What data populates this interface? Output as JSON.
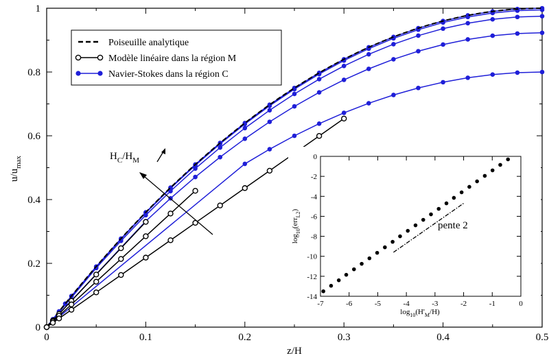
{
  "chart_data": [
    {
      "type": "line",
      "xlabel": "z/H",
      "ylabel": "u/u",
      "ylabel_sub": "max",
      "xlim": [
        0,
        0.5
      ],
      "ylim": [
        0,
        1
      ],
      "xticks": [
        "0",
        "0.1",
        "0.2",
        "0.3",
        "0.4",
        "0.5"
      ],
      "yticks": [
        "0",
        "0.2",
        "0.4",
        "0.6",
        "0.8",
        "1"
      ],
      "legend_position": "top-left",
      "legend": [
        {
          "label": "Poiseuille analytique",
          "style": "dashed",
          "color": "#000000"
        },
        {
          "label": "Modèle linéaire dans la région M",
          "style": "open-circle",
          "color": "#000000"
        },
        {
          "label": "Navier-Stokes dans la région C",
          "style": "filled-circle",
          "color": "#1f1fd8"
        }
      ],
      "annotation": {
        "text": "H",
        "sub1": "C",
        "mid": "/H",
        "sub2": "M"
      },
      "analytic": {
        "formula": "4(z/H)(1-z/H)"
      },
      "ns_x": [
        0,
        0.00625,
        0.0125,
        0.01875,
        0.025,
        0.05,
        0.075,
        0.1,
        0.125,
        0.15,
        0.175,
        0.2,
        0.225,
        0.25,
        0.275,
        0.3,
        0.325,
        0.35,
        0.375,
        0.4,
        0.425,
        0.45,
        0.475,
        0.5
      ],
      "series": [
        {
          "kind": "ns",
          "top": 1.0
        },
        {
          "kind": "ns",
          "top": 0.995
        },
        {
          "kind": "ns",
          "top": 0.975,
          "x_start": 0.05
        },
        {
          "kind": "ns",
          "top": 0.923,
          "x_start": 0.1
        },
        {
          "kind": "ns",
          "top": 0.8,
          "x_start": 0.2
        },
        {
          "kind": "linear",
          "slope": 3.3,
          "x": [
            0,
            0.00625,
            0.0125,
            0.025,
            0.05,
            0.075,
            0.1
          ]
        },
        {
          "kind": "linear",
          "slope": 2.85,
          "x": [
            0,
            0.00625,
            0.0125,
            0.025,
            0.05,
            0.075,
            0.1,
            0.125,
            0.15
          ]
        },
        {
          "kind": "linear",
          "slope": 2.18,
          "x": [
            0,
            0.00625,
            0.0125,
            0.025,
            0.05,
            0.075,
            0.1,
            0.125,
            0.15,
            0.175,
            0.2,
            0.225,
            0.25,
            0.275,
            0.3
          ]
        }
      ]
    },
    {
      "type": "scatter",
      "xlabel": "log",
      "xlabel_sub": "10",
      "xlabel_rest": "(H'",
      "xlabel_sub2": "M",
      "xlabel_end": "/H)",
      "ylabel": "log",
      "ylabel_sub": "10",
      "ylabel_mid": "(err",
      "ylabel_sub2": "L2",
      "ylabel_end": ")",
      "xlim": [
        -7,
        0
      ],
      "ylim": [
        -14,
        0
      ],
      "xticks": [
        "-7",
        "-6",
        "-5",
        "-4",
        "-3",
        "-2",
        "-1",
        "0"
      ],
      "yticks": [
        "0",
        "-2",
        "-4",
        "-6",
        "-8",
        "-10",
        "-12",
        "-14"
      ],
      "points": [
        [
          -6.9,
          -13.5
        ],
        [
          -6.63,
          -12.95
        ],
        [
          -6.36,
          -12.4
        ],
        [
          -6.1,
          -11.85
        ],
        [
          -5.83,
          -11.3
        ],
        [
          -5.56,
          -10.75
        ],
        [
          -5.29,
          -10.2
        ],
        [
          -5.02,
          -9.65
        ],
        [
          -4.75,
          -9.1
        ],
        [
          -4.48,
          -8.55
        ],
        [
          -4.22,
          -8.0
        ],
        [
          -3.95,
          -7.45
        ],
        [
          -3.68,
          -6.9
        ],
        [
          -3.41,
          -6.35
        ],
        [
          -3.14,
          -5.8
        ],
        [
          -2.87,
          -5.25
        ],
        [
          -2.6,
          -4.7
        ],
        [
          -2.34,
          -4.15
        ],
        [
          -2.07,
          -3.6
        ],
        [
          -1.8,
          -3.05
        ],
        [
          -1.53,
          -2.5
        ],
        [
          -1.26,
          -1.95
        ],
        [
          -0.99,
          -1.4
        ],
        [
          -0.72,
          -0.85
        ],
        [
          -0.45,
          -0.3
        ]
      ],
      "reference_line": {
        "x": [
          -4.45,
          -2.0
        ],
        "y": [
          -9.6,
          -4.7
        ],
        "label": "pente 2"
      }
    }
  ]
}
